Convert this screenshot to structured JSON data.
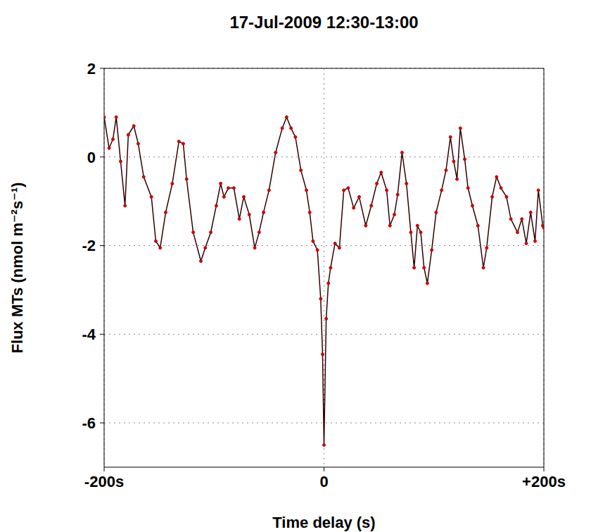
{
  "chart_data": {
    "type": "line",
    "title": "17-Jul-2009 12:30-13:00",
    "x_label": "Time delay (s)",
    "y_label": "Flux MTs (nmol m⁻²s⁻¹)",
    "x": [
      -200,
      -195.5,
      -192,
      -189,
      -185,
      -181,
      -178,
      -173,
      -169,
      -164,
      -157,
      -153,
      -149,
      -144,
      -138,
      -132,
      -128,
      -125,
      -119,
      -112,
      -108,
      -103,
      -98,
      -94,
      -91,
      -87,
      -82,
      -77,
      -73,
      -68,
      -63,
      -59,
      -55,
      -50,
      -44,
      -38,
      -34,
      -30,
      -26,
      -21,
      -16,
      -13,
      -10,
      -6,
      -3,
      -1.3,
      0,
      2,
      4,
      6,
      10,
      14,
      18,
      22,
      27,
      32,
      38,
      43,
      48,
      52,
      57,
      60,
      64,
      67,
      71,
      75,
      79,
      82,
      85,
      88,
      91,
      94,
      98,
      102,
      107,
      111,
      115,
      118,
      121,
      124,
      128,
      131,
      135,
      140,
      145,
      148,
      153,
      157,
      161,
      166,
      170,
      176,
      180,
      184,
      188,
      192,
      195,
      199,
      200
    ],
    "values": [
      0.9,
      0.2,
      0.4,
      0.9,
      -0.1,
      -1.1,
      0.5,
      0.7,
      0.3,
      -0.45,
      -0.9,
      -1.9,
      -2.05,
      -1.25,
      -0.6,
      0.35,
      0.3,
      -0.5,
      -1.7,
      -2.35,
      -2.05,
      -1.7,
      -1.1,
      -0.6,
      -0.9,
      -0.7,
      -0.7,
      -1.4,
      -0.9,
      -1.3,
      -2.05,
      -1.7,
      -1.25,
      -0.75,
      0.1,
      0.65,
      0.9,
      0.65,
      0.45,
      -0.3,
      -0.75,
      -1.25,
      -1.9,
      -2.1,
      -3.2,
      -4.45,
      -6.5,
      -3.65,
      -2.85,
      -2.5,
      -1.95,
      -2.05,
      -0.75,
      -0.7,
      -1.15,
      -0.9,
      -1.55,
      -1.1,
      -0.6,
      -0.35,
      -0.75,
      -1.55,
      -1.3,
      -0.85,
      0.1,
      -0.6,
      -1.7,
      -2.5,
      -1.55,
      -1.7,
      -2.5,
      -2.85,
      -2.1,
      -1.25,
      -0.75,
      -0.3,
      0.45,
      -0.1,
      -0.5,
      0.65,
      -0.05,
      -0.7,
      -1.1,
      -1.55,
      -2.5,
      -2.05,
      -0.9,
      -0.45,
      -0.7,
      -0.9,
      -1.4,
      -1.7,
      -1.4,
      -1.95,
      -1.25,
      -1.9,
      -0.75,
      -1.55,
      -1.6
    ],
    "color": "#cc0000",
    "marker": "o",
    "xlim": [
      -200,
      200
    ],
    "xticks": [
      {
        "value": -200,
        "label": "-200s"
      },
      0,
      {
        "value": 200,
        "label": "+200s"
      }
    ],
    "ylim": [
      -7,
      2
    ],
    "yticks": [
      -6,
      -4,
      -2,
      0,
      2
    ],
    "grid": true
  }
}
